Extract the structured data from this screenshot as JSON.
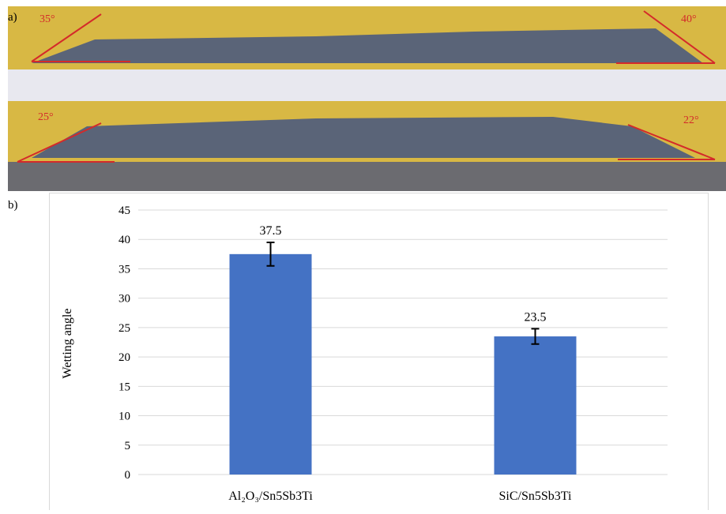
{
  "panels": {
    "a": "a)",
    "b": "b)"
  },
  "photo": {
    "angles": [
      "35°",
      "40°",
      "25°",
      "22°"
    ]
  },
  "chart_data": {
    "type": "bar",
    "categories": [
      "Al₂O₃/Sn5Sb3Ti",
      "SiC/Sn5Sb3Ti"
    ],
    "values": [
      37.5,
      23.5
    ],
    "errors": [
      2,
      1.3
    ],
    "color": "#4472c4",
    "y_label": "Wetting angle",
    "ylim": [
      0,
      45
    ],
    "yticks": [
      0,
      5,
      10,
      15,
      20,
      25,
      30,
      35,
      40,
      45
    ],
    "grid": true
  }
}
